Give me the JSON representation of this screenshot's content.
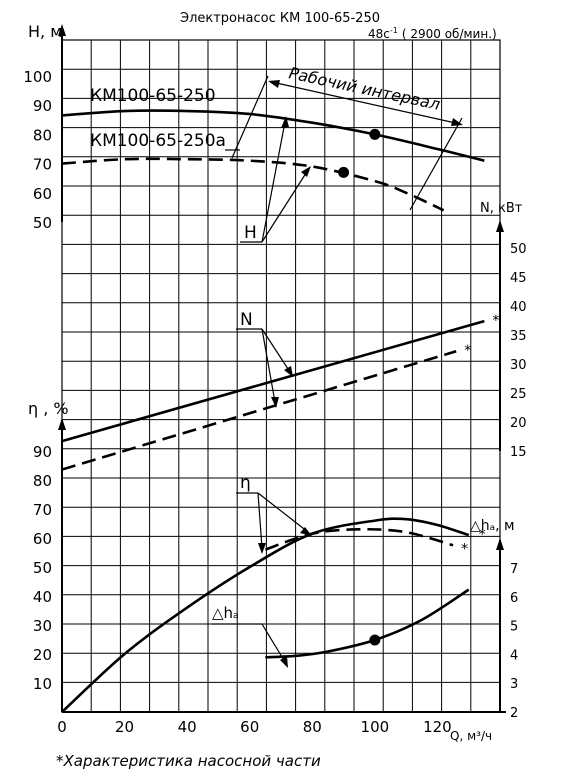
{
  "chart_data": {
    "type": "line",
    "title": "Электронасос КМ  100-65-250",
    "subtitle_rate": "48c",
    "subtitle_rate_exp": "-1",
    "subtitle_rpm": "( 2900 об/мин.)",
    "footnote": "*Характеристика насосной части",
    "xlabel": "Q, м³/ч",
    "x_ticks": [
      "0",
      "20",
      "40",
      "60",
      "80",
      "100",
      "120"
    ],
    "xlim": [
      0,
      140
    ],
    "axes": {
      "H": {
        "label": "Н, м",
        "ticks": [
          "100",
          "90",
          "80",
          "70",
          "60",
          "50"
        ],
        "range": [
          50,
          100
        ]
      },
      "N": {
        "label": "N, кВт",
        "ticks": [
          "50",
          "45",
          "40",
          "35",
          "30",
          "25",
          "20",
          "15"
        ],
        "range": [
          15,
          50
        ]
      },
      "eta": {
        "label": "η , %",
        "ticks": [
          "90",
          "80",
          "70",
          "60",
          "50",
          "40",
          "30",
          "20",
          "10"
        ],
        "range": [
          0,
          90
        ]
      },
      "dh": {
        "label": "△hₐ, м",
        "ticks": [
          "7",
          "6",
          "5",
          "4",
          "3",
          "2"
        ],
        "range": [
          2,
          7
        ]
      }
    },
    "series": [
      {
        "name": "КМ100-65-250",
        "axis": "H",
        "style": "solid",
        "x": [
          0,
          20,
          40,
          60,
          80,
          100,
          120,
          135
        ],
        "y": [
          86.5,
          88,
          88,
          87,
          84,
          80,
          75,
          71
        ]
      },
      {
        "name": "КМ100-65-250а",
        "axis": "H",
        "style": "dashed",
        "x": [
          0,
          20,
          40,
          60,
          80,
          100,
          110,
          122
        ],
        "y": [
          70,
          71.5,
          71.5,
          71,
          69,
          64,
          60,
          54
        ]
      },
      {
        "name": "N",
        "axis": "N",
        "style": "solid",
        "x": [
          0,
          135
        ],
        "y": [
          16.7,
          37.4
        ]
      },
      {
        "name": "N",
        "axis": "N",
        "style": "dashed",
        "x": [
          0,
          126
        ],
        "y": [
          11.8,
          32.2
        ]
      },
      {
        "name": "η",
        "axis": "eta",
        "style": "solid",
        "x": [
          0,
          20,
          40,
          60,
          80,
          100,
          110,
          120,
          130
        ],
        "y": [
          0,
          20,
          36,
          50,
          61.5,
          66,
          66.5,
          64.5,
          61
        ]
      },
      {
        "name": "η",
        "axis": "eta",
        "style": "dashed",
        "x": [
          65,
          80,
          95,
          110,
          125
        ],
        "y": [
          56,
          61.5,
          63,
          62,
          57.5
        ]
      },
      {
        "name": "△hₐ",
        "axis": "dh",
        "style": "solid",
        "x": [
          65,
          75,
          85,
          100,
          115,
          130
        ],
        "y": [
          3.9,
          3.95,
          4.1,
          4.5,
          5.2,
          6.25
        ]
      }
    ],
    "points": [
      {
        "axis": "H",
        "x": 100,
        "y": 80
      },
      {
        "axis": "H",
        "x": 90,
        "y": 67
      },
      {
        "axis": "dh",
        "x": 100,
        "y": 4.5
      }
    ],
    "annotations": {
      "working_range": "Рабочий интервал",
      "H": "Н",
      "N": "N",
      "eta": "η",
      "dh": "△hₐ",
      "star": "*"
    },
    "grid": true
  }
}
